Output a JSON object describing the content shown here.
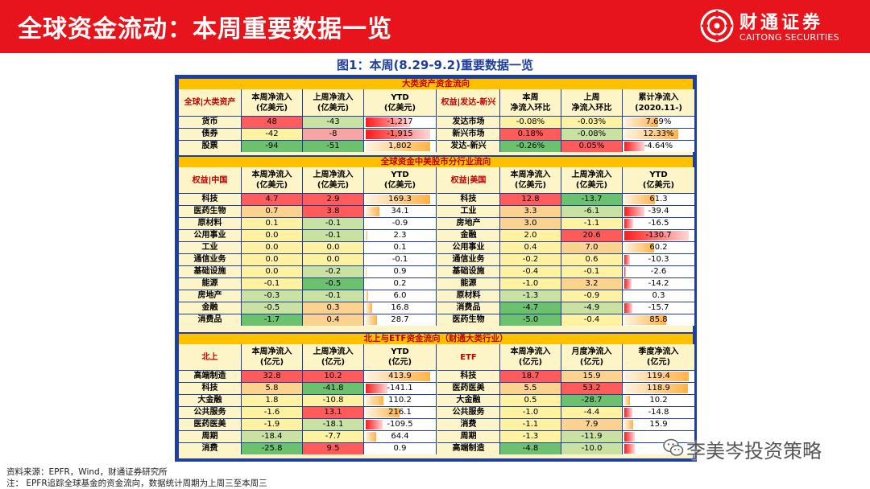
{
  "header": {
    "title": "全球资金流动：本周重要数据一览",
    "logo_cn": "财通证券",
    "logo_en": "CAITONG SECURITIES"
  },
  "figure_title": "图1：本周(8.29-9.2)重要数据一览",
  "colors": {
    "red": "#ff5b5b",
    "pink": "#f8a4a4",
    "orange": "#fbd38f",
    "yellow": "#fff2a0",
    "lightgreen": "#c9e2a1",
    "green": "#6cc16f",
    "barred": "#ff1a1a",
    "barorange": "#ffb347"
  },
  "section1": {
    "title": "大类资产资金流向",
    "left": {
      "label": "全球|大类资产",
      "headers": [
        "本周净流入\n(亿美元)",
        "上周净流入\n(亿美元)",
        "YTD\n(亿美元)"
      ],
      "rows": [
        {
          "name": "货币",
          "c1": "48",
          "c1c": "red",
          "c2": "-43",
          "c2c": "lightgreen",
          "ytd": "-1,217",
          "bar": -0.65,
          "barcolor": "barred"
        },
        {
          "name": "债券",
          "c1": "-42",
          "c1c": "yellow",
          "c2": "-8",
          "c2c": "pink",
          "ytd": "-1,915",
          "bar": -0.95,
          "barcolor": "barred"
        },
        {
          "name": "股票",
          "c1": "-94",
          "c1c": "green",
          "c2": "-51",
          "c2c": "green",
          "ytd": "1,802",
          "bar": 0.95,
          "barcolor": "barorange"
        }
      ]
    },
    "right": {
      "label": "权益|发达-新兴",
      "headers": [
        "本周\n净流入环比",
        "上周\n净流入环比",
        "累计净流入\n(2020.11-)"
      ],
      "rows": [
        {
          "name": "发达市场",
          "c1": "-0.08%",
          "c1c": "yellow",
          "c2": "-0.03%",
          "c2c": "yellow",
          "ytd": "7.69%",
          "bar": 0.5,
          "barcolor": "barorange"
        },
        {
          "name": "新兴市场",
          "c1": "0.18%",
          "c1c": "red",
          "c2": "-0.08%",
          "c2c": "lightgreen",
          "ytd": "12.33%",
          "bar": 0.8,
          "barcolor": "barorange"
        },
        {
          "name": "发达-新兴",
          "c1": "-0.26%",
          "c1c": "green",
          "c2": "0.05%",
          "c2c": "red",
          "ytd": "-4.64%",
          "bar": -0.3,
          "barcolor": "barred"
        }
      ]
    }
  },
  "section2": {
    "title": "全球资金中美股市分行业流向",
    "left": {
      "label": "权益|中国",
      "headers": [
        "本周净流入\n(亿美元)",
        "上周净流入\n(亿美元)",
        "YTD\n(亿美元)"
      ],
      "rows": [
        {
          "name": "科技",
          "c1": "4.7",
          "c1c": "red",
          "c2": "2.9",
          "c2c": "red",
          "ytd": "169.3",
          "bar": 0.95,
          "barcolor": "barorange"
        },
        {
          "name": "医药生物",
          "c1": "0.7",
          "c1c": "orange",
          "c2": "3.8",
          "c2c": "red",
          "ytd": "34.1",
          "bar": 0.2,
          "barcolor": "barorange"
        },
        {
          "name": "原材料",
          "c1": "0.1",
          "c1c": "yellow",
          "c2": "-0.1",
          "c2c": "lightgreen",
          "ytd": "-0.9",
          "bar": 0,
          "barcolor": "barred"
        },
        {
          "name": "公用事业",
          "c1": "0.0",
          "c1c": "yellow",
          "c2": "-0.1",
          "c2c": "lightgreen",
          "ytd": "2.3",
          "bar": 0.02,
          "barcolor": "barorange"
        },
        {
          "name": "工业",
          "c1": "0.0",
          "c1c": "yellow",
          "c2": "0.0",
          "c2c": "yellow",
          "ytd": "0.1",
          "bar": 0,
          "barcolor": "barorange"
        },
        {
          "name": "通信业务",
          "c1": "0.0",
          "c1c": "yellow",
          "c2": "0.0",
          "c2c": "yellow",
          "ytd": "-0.1",
          "bar": 0,
          "barcolor": "barred"
        },
        {
          "name": "基础设施",
          "c1": "0.0",
          "c1c": "yellow",
          "c2": "-0.2",
          "c2c": "lightgreen",
          "ytd": "0.9",
          "bar": 0.01,
          "barcolor": "barorange"
        },
        {
          "name": "能源",
          "c1": "-0.1",
          "c1c": "yellow",
          "c2": "-0.5",
          "c2c": "green",
          "ytd": "0.2",
          "bar": 0,
          "barcolor": "barorange"
        },
        {
          "name": "房地产",
          "c1": "-0.3",
          "c1c": "lightgreen",
          "c2": "-0.1",
          "c2c": "lightgreen",
          "ytd": "6.0",
          "bar": 0.04,
          "barcolor": "barorange"
        },
        {
          "name": "金融",
          "c1": "-0.5",
          "c1c": "lightgreen",
          "c2": "0.3",
          "c2c": "orange",
          "ytd": "16.8",
          "bar": 0.1,
          "barcolor": "barorange"
        },
        {
          "name": "消费品",
          "c1": "-1.7",
          "c1c": "green",
          "c2": "0.4",
          "c2c": "orange",
          "ytd": "28.7",
          "bar": 0.17,
          "barcolor": "barorange"
        }
      ]
    },
    "right": {
      "label": "权益|美国",
      "headers": [
        "本周净流入\n(亿美元)",
        "上周净流入\n(亿美元)",
        "YTD\n(亿美元)"
      ],
      "rows": [
        {
          "name": "科技",
          "c1": "12.8",
          "c1c": "red",
          "c2": "-13.7",
          "c2c": "green",
          "ytd": "61.3",
          "bar": 0.45,
          "barcolor": "barorange"
        },
        {
          "name": "工业",
          "c1": "3.3",
          "c1c": "orange",
          "c2": "-6.1",
          "c2c": "lightgreen",
          "ytd": "-39.4",
          "bar": -0.3,
          "barcolor": "barred"
        },
        {
          "name": "房地产",
          "c1": "3.0",
          "c1c": "orange",
          "c2": "-1.1",
          "c2c": "yellow",
          "ytd": "-16.5",
          "bar": -0.13,
          "barcolor": "barred"
        },
        {
          "name": "金融",
          "c1": "2.0",
          "c1c": "yellow",
          "c2": "20.6",
          "c2c": "red",
          "ytd": "-130.7",
          "bar": -0.95,
          "barcolor": "barred"
        },
        {
          "name": "公用事业",
          "c1": "0.4",
          "c1c": "yellow",
          "c2": "7.0",
          "c2c": "orange",
          "ytd": "60.2",
          "bar": 0.44,
          "barcolor": "barorange"
        },
        {
          "name": "通信业务",
          "c1": "-0.2",
          "c1c": "yellow",
          "c2": "0.6",
          "c2c": "yellow",
          "ytd": "-10.3",
          "bar": -0.08,
          "barcolor": "barred"
        },
        {
          "name": "基础设施",
          "c1": "-0.4",
          "c1c": "yellow",
          "c2": "-0.1",
          "c2c": "yellow",
          "ytd": "-2.6",
          "bar": -0.02,
          "barcolor": "barred"
        },
        {
          "name": "能源",
          "c1": "-1.0",
          "c1c": "yellow",
          "c2": "3.2",
          "c2c": "orange",
          "ytd": "-14.2",
          "bar": -0.11,
          "barcolor": "barred"
        },
        {
          "name": "原材料",
          "c1": "-1.3",
          "c1c": "lightgreen",
          "c2": "-0.9",
          "c2c": "yellow",
          "ytd": "0.3",
          "bar": 0,
          "barcolor": "barorange"
        },
        {
          "name": "消费品",
          "c1": "-4.7",
          "c1c": "green",
          "c2": "-4.9",
          "c2c": "lightgreen",
          "ytd": "-15.7",
          "bar": -0.12,
          "barcolor": "barred"
        },
        {
          "name": "医药生物",
          "c1": "-5.0",
          "c1c": "green",
          "c2": "-0.4",
          "c2c": "yellow",
          "ytd": "85.8",
          "bar": 0.62,
          "barcolor": "barorange"
        }
      ]
    }
  },
  "section3": {
    "title": "北上与ETF资金流向（财通大类行业）",
    "left": {
      "label": "北上",
      "headers": [
        "本周净流入\n(亿元)",
        "上周净流入\n(亿元)",
        "YTD\n(亿元)"
      ],
      "rows": [
        {
          "name": "高端制造",
          "c1": "32.8",
          "c1c": "red",
          "c2": "10.2",
          "c2c": "red",
          "ytd": "413.9",
          "bar": 0.95,
          "barcolor": "barorange"
        },
        {
          "name": "科技",
          "c1": "5.8",
          "c1c": "orange",
          "c2": "-41.8",
          "c2c": "green",
          "ytd": "-141.1",
          "bar": -0.32,
          "barcolor": "barred"
        },
        {
          "name": "大金融",
          "c1": "1.8",
          "c1c": "yellow",
          "c2": "-10.8",
          "c2c": "yellow",
          "ytd": "110.2",
          "bar": 0.26,
          "barcolor": "barorange"
        },
        {
          "name": "公共服务",
          "c1": "-1.6",
          "c1c": "yellow",
          "c2": "13.1",
          "c2c": "red",
          "ytd": "216.1",
          "bar": 0.5,
          "barcolor": "barorange"
        },
        {
          "name": "医药医美",
          "c1": "-1.9",
          "c1c": "yellow",
          "c2": "-18.1",
          "c2c": "lightgreen",
          "ytd": "-109.5",
          "bar": -0.25,
          "barcolor": "barred"
        },
        {
          "name": "周期",
          "c1": "-18.4",
          "c1c": "lightgreen",
          "c2": "-7.7",
          "c2c": "yellow",
          "ytd": "64.4",
          "bar": 0.15,
          "barcolor": "barorange"
        },
        {
          "name": "消费",
          "c1": "-25.8",
          "c1c": "green",
          "c2": "9.5",
          "c2c": "red",
          "ytd": "0.9",
          "bar": 0,
          "barcolor": "barorange"
        }
      ]
    },
    "right": {
      "label": "ETF",
      "headers": [
        "本周净流入\n(亿元)",
        "月度净流入\n(亿元)",
        "季度净流入\n(亿元)"
      ],
      "rows": [
        {
          "name": "科技",
          "c1": "18.7",
          "c1c": "red",
          "c2": "15.9",
          "c2c": "orange",
          "ytd": "119.4",
          "bar": 0.95,
          "barcolor": "barorange"
        },
        {
          "name": "医药医美",
          "c1": "5.5",
          "c1c": "orange",
          "c2": "53.2",
          "c2c": "red",
          "ytd": "118.9",
          "bar": 0.94,
          "barcolor": "barorange"
        },
        {
          "name": "大金融",
          "c1": "0.5",
          "c1c": "yellow",
          "c2": "-28.7",
          "c2c": "green",
          "ytd": "10.2",
          "bar": 0.08,
          "barcolor": "barorange"
        },
        {
          "name": "公共服务",
          "c1": "-1.0",
          "c1c": "yellow",
          "c2": "-4.4",
          "c2c": "yellow",
          "ytd": "-14.8",
          "bar": -0.12,
          "barcolor": "barred"
        },
        {
          "name": "消费",
          "c1": "-1.1",
          "c1c": "yellow",
          "c2": "7.9",
          "c2c": "orange",
          "ytd": "15.9",
          "bar": 0.13,
          "barcolor": "barorange"
        },
        {
          "name": "周期",
          "c1": "-1.3",
          "c1c": "yellow",
          "c2": "-11.9",
          "c2c": "lightgreen",
          "ytd": "",
          "bar": -0.15,
          "barcolor": "barred"
        },
        {
          "name": "高端制造",
          "c1": "-4.8",
          "c1c": "green",
          "c2": "-10.0",
          "c2c": "lightgreen",
          "ytd": "",
          "bar": -0.15,
          "barcolor": "barred"
        }
      ]
    }
  },
  "footnotes": {
    "source": "资料来源：EPFR，Wind，财通证券研究所",
    "note": "注：  EPFR追踪全球基金的资金流向，数据统计周期为上周三至本周三"
  },
  "watermark": {
    "text": "李美岑投资策略",
    "icon": "wechat-icon"
  }
}
